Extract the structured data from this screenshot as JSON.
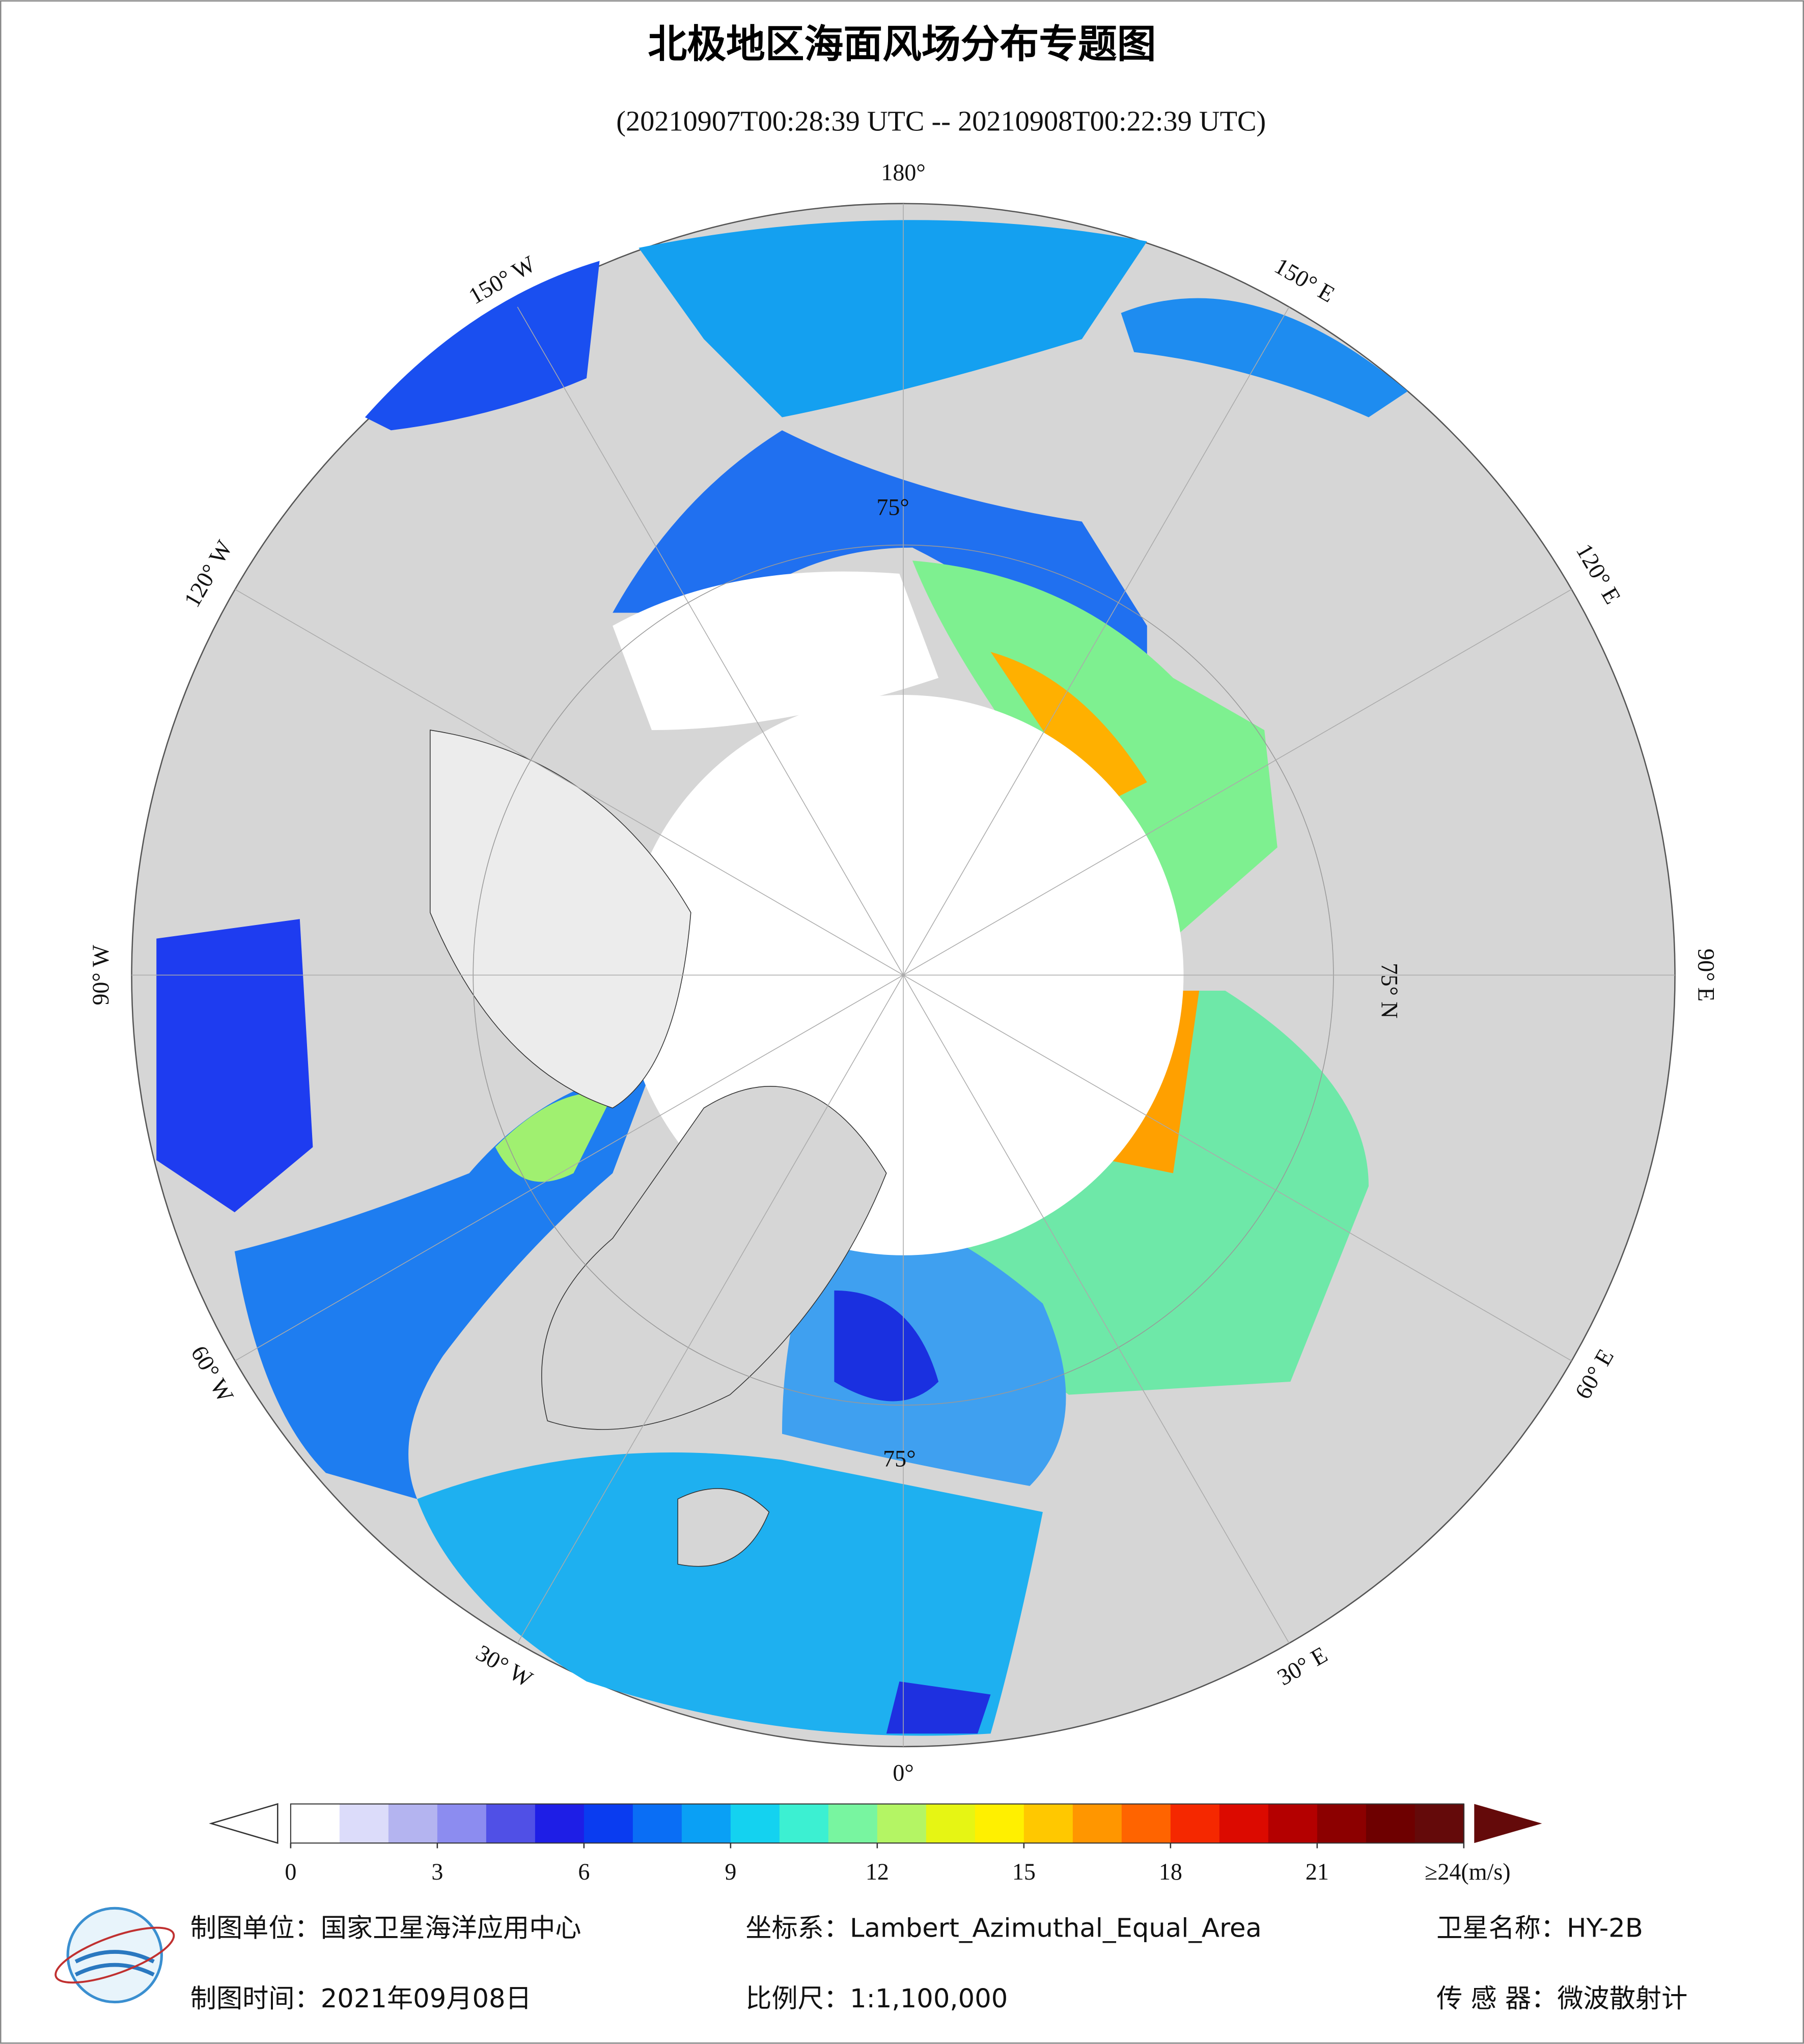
{
  "header": {
    "title": "北极地区海面风场分布专题图",
    "subtitle": "(20210907T00:28:39 UTC -- 20210908T00:22:39 UTC)"
  },
  "map": {
    "lon_labels": [
      "0°",
      "30° E",
      "60° E",
      "90° E",
      "120° E",
      "150° E",
      "180°",
      "150° W",
      "120° W",
      "90° W",
      "60° W",
      "30° W"
    ],
    "lat_labels": [
      "75° N",
      "75°",
      "75°"
    ]
  },
  "colorbar": {
    "range": [
      0,
      24
    ],
    "colors": [
      "#ffffff",
      "#dcdcfa",
      "#b4b4f0",
      "#8c8cf0",
      "#5050e6",
      "#1e1ee6",
      "#0a3cf0",
      "#0a6ef5",
      "#0aa0f5",
      "#14d2f0",
      "#3cf0d2",
      "#78f5a0",
      "#b4f564",
      "#e6f514",
      "#fff000",
      "#ffc800",
      "#ff9600",
      "#ff6400",
      "#f52800",
      "#dc0a00",
      "#b40000",
      "#8c0000",
      "#6e0000",
      "#640a0a"
    ],
    "ticks": [
      0,
      3,
      6,
      9,
      12,
      15,
      18,
      21,
      {
        "value": 24,
        "label": "≥24(m/s)"
      }
    ]
  },
  "footer": {
    "unit": "制图单位：国家卫星海洋应用中心",
    "coords": "坐标系：Lambert_Azimuthal_Equal_Area",
    "satellite": "卫星名称：HY-2B",
    "date": "制图时间：2021年09月08日",
    "scale": "比例尺：1:1,100,000",
    "sensor": "传 感 器：微波散射计"
  }
}
